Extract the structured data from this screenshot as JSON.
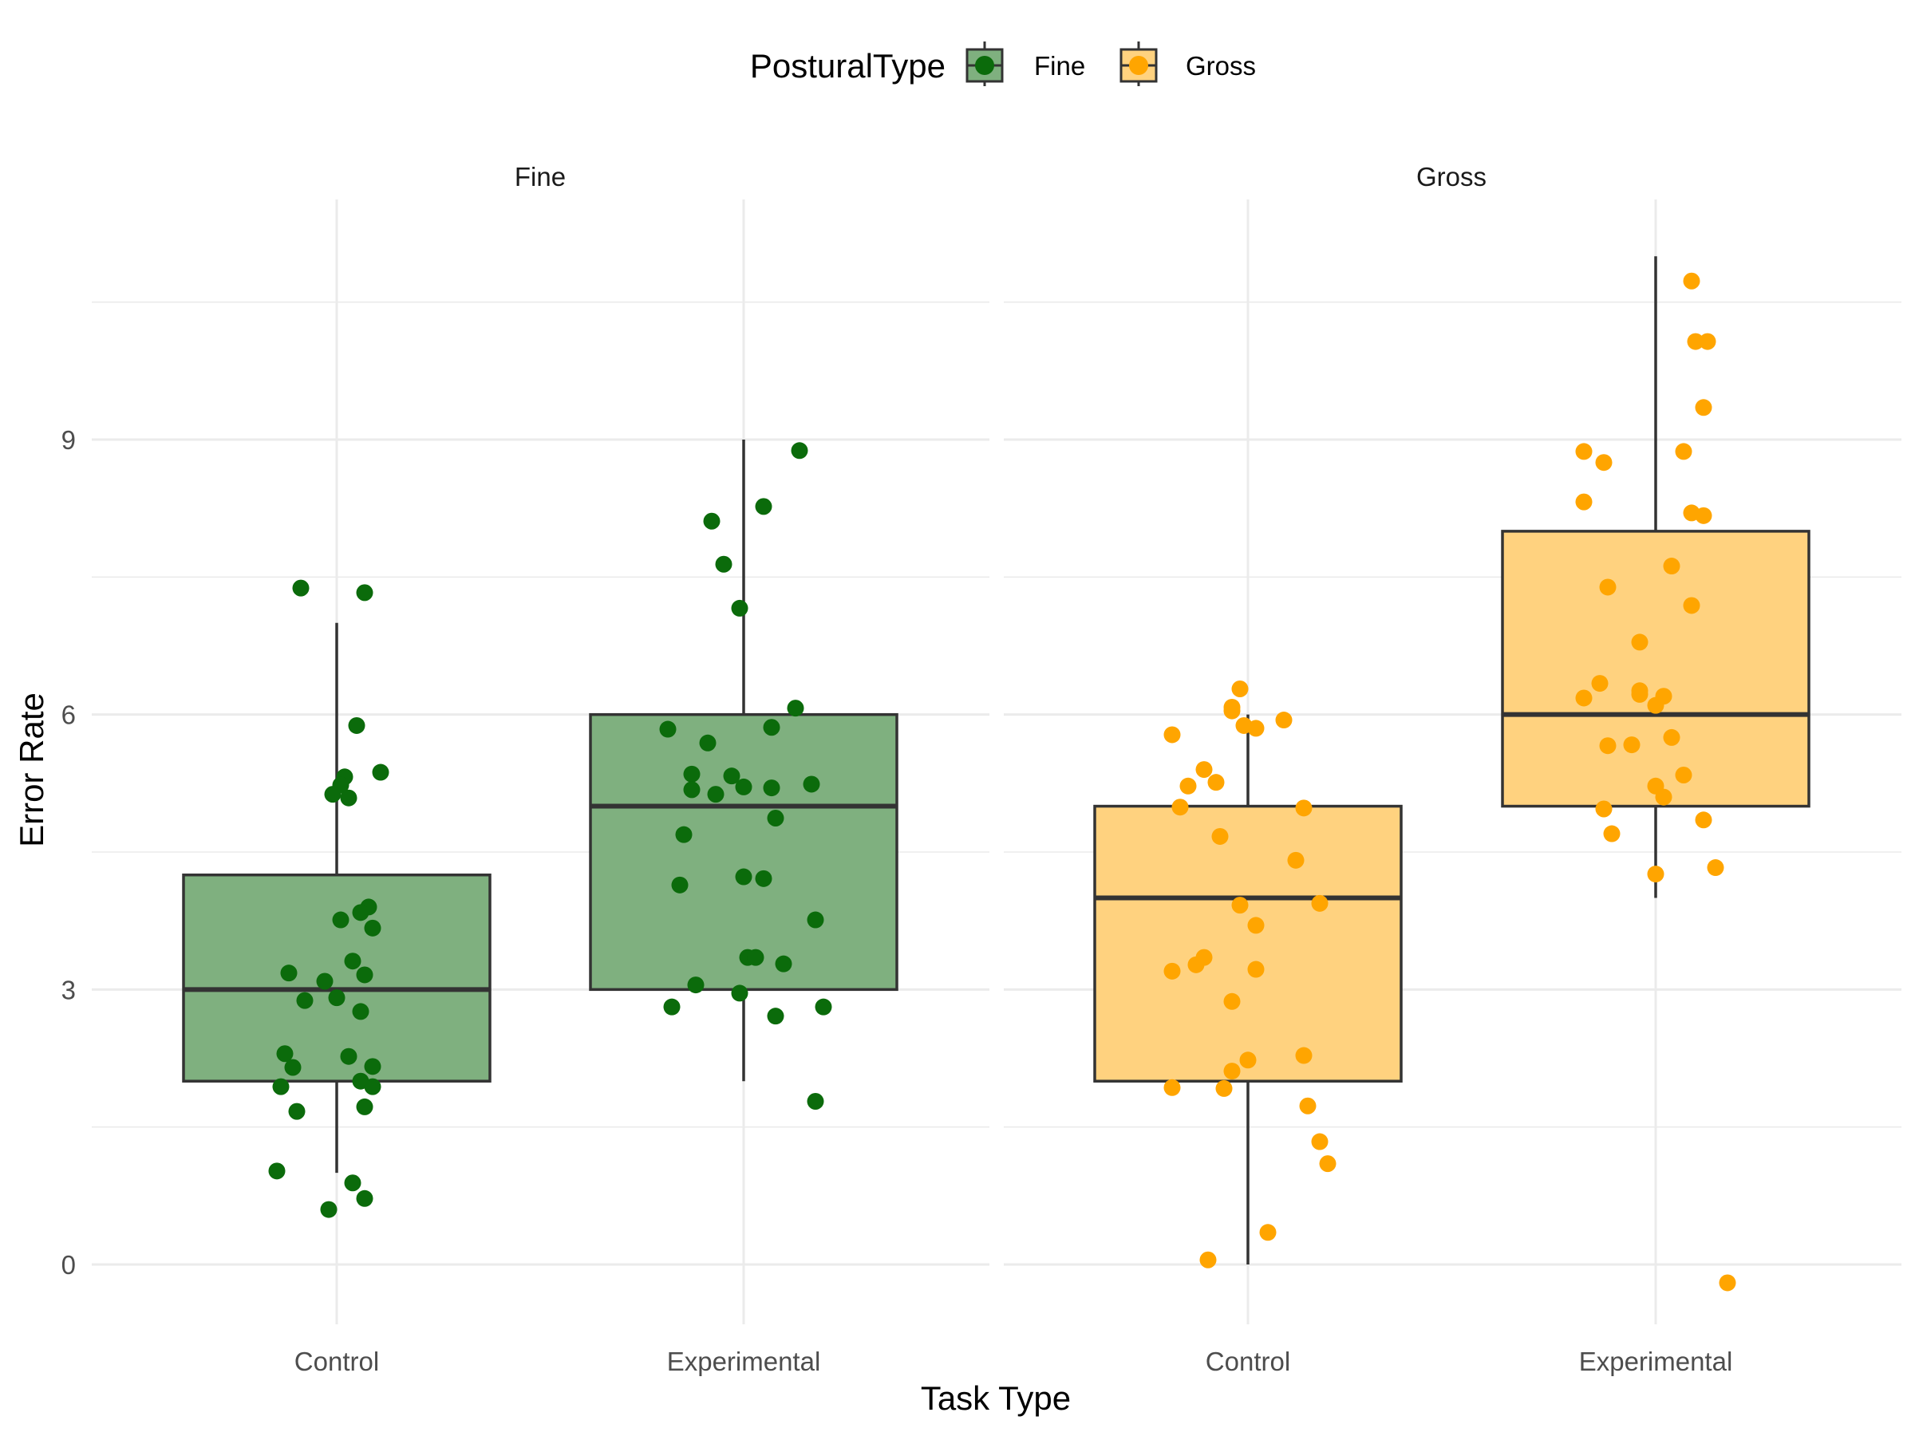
{
  "chart_data": {
    "type": "boxplot",
    "xlabel": "Task Type",
    "ylabel": "Error Rate",
    "legend": {
      "title": "PosturalType",
      "position": "top",
      "entries": [
        {
          "name": "Fine",
          "fill": "#7fb07f",
          "point": "#0b6b0b"
        },
        {
          "name": "Gross",
          "fill": "#ffd27f",
          "point": "#ffa500"
        }
      ]
    },
    "ylim": [
      -0.6,
      11.7
    ],
    "yticks": [
      0,
      3,
      6,
      9
    ],
    "grid": true,
    "categories": [
      "Control",
      "Experimental"
    ],
    "panels": [
      {
        "label": "Fine",
        "boxes": [
          {
            "category": "Control",
            "whisker_low": 1,
            "q1": 2,
            "median": 3,
            "q3": 4.25,
            "whisker_high": 7,
            "points": [
              {
                "dx": -0.09,
                "y": 7.38
              },
              {
                "dx": 0.07,
                "y": 7.33
              },
              {
                "dx": 0.05,
                "y": 5.88
              },
              {
                "dx": 0.11,
                "y": 5.37
              },
              {
                "dx": 0.02,
                "y": 5.32
              },
              {
                "dx": 0.01,
                "y": 5.23
              },
              {
                "dx": -0.01,
                "y": 5.13
              },
              {
                "dx": 0.03,
                "y": 5.09
              },
              {
                "dx": 0.08,
                "y": 3.9
              },
              {
                "dx": 0.06,
                "y": 3.84
              },
              {
                "dx": 0.01,
                "y": 3.76
              },
              {
                "dx": 0.09,
                "y": 3.67
              },
              {
                "dx": 0.04,
                "y": 3.31
              },
              {
                "dx": -0.12,
                "y": 3.18
              },
              {
                "dx": 0.07,
                "y": 3.16
              },
              {
                "dx": -0.03,
                "y": 3.09
              },
              {
                "dx": -0.08,
                "y": 2.88
              },
              {
                "dx": 0.0,
                "y": 2.91
              },
              {
                "dx": 0.06,
                "y": 2.76
              },
              {
                "dx": -0.13,
                "y": 2.3
              },
              {
                "dx": 0.03,
                "y": 2.27
              },
              {
                "dx": -0.11,
                "y": 2.15
              },
              {
                "dx": 0.09,
                "y": 2.16
              },
              {
                "dx": 0.06,
                "y": 2.0
              },
              {
                "dx": -0.14,
                "y": 1.94
              },
              {
                "dx": 0.09,
                "y": 1.94
              },
              {
                "dx": 0.07,
                "y": 1.72
              },
              {
                "dx": -0.1,
                "y": 1.67
              },
              {
                "dx": -0.15,
                "y": 1.02
              },
              {
                "dx": 0.04,
                "y": 0.89
              },
              {
                "dx": 0.07,
                "y": 0.72
              },
              {
                "dx": -0.02,
                "y": 0.6
              }
            ]
          },
          {
            "category": "Experimental",
            "whisker_low": 2,
            "q1": 3,
            "median": 5,
            "q3": 6,
            "whisker_high": 9,
            "points": [
              {
                "dx": 0.14,
                "y": 8.88
              },
              {
                "dx": 0.05,
                "y": 8.27
              },
              {
                "dx": -0.08,
                "y": 8.11
              },
              {
                "dx": -0.05,
                "y": 7.64
              },
              {
                "dx": -0.01,
                "y": 7.16
              },
              {
                "dx": 0.13,
                "y": 6.07
              },
              {
                "dx": -0.19,
                "y": 5.84
              },
              {
                "dx": 0.07,
                "y": 5.86
              },
              {
                "dx": -0.09,
                "y": 5.69
              },
              {
                "dx": -0.13,
                "y": 5.35
              },
              {
                "dx": -0.03,
                "y": 5.33
              },
              {
                "dx": -0.13,
                "y": 5.18
              },
              {
                "dx": 0.0,
                "y": 5.21
              },
              {
                "dx": 0.07,
                "y": 5.2
              },
              {
                "dx": 0.17,
                "y": 5.24
              },
              {
                "dx": -0.07,
                "y": 5.13
              },
              {
                "dx": 0.08,
                "y": 4.87
              },
              {
                "dx": -0.15,
                "y": 4.69
              },
              {
                "dx": 0.0,
                "y": 4.23
              },
              {
                "dx": 0.05,
                "y": 4.21
              },
              {
                "dx": -0.16,
                "y": 4.14
              },
              {
                "dx": 0.18,
                "y": 3.76
              },
              {
                "dx": 0.01,
                "y": 3.35
              },
              {
                "dx": 0.03,
                "y": 3.35
              },
              {
                "dx": 0.1,
                "y": 3.28
              },
              {
                "dx": -0.12,
                "y": 3.05
              },
              {
                "dx": -0.01,
                "y": 2.96
              },
              {
                "dx": -0.18,
                "y": 2.81
              },
              {
                "dx": 0.2,
                "y": 2.81
              },
              {
                "dx": 0.08,
                "y": 2.71
              },
              {
                "dx": 0.18,
                "y": 1.78
              }
            ]
          }
        ]
      },
      {
        "label": "Gross",
        "boxes": [
          {
            "category": "Control",
            "whisker_low": 0,
            "q1": 2,
            "median": 4,
            "q3": 5,
            "whisker_high": 6,
            "points": [
              {
                "dx": -0.02,
                "y": 6.28
              },
              {
                "dx": -0.04,
                "y": 6.08
              },
              {
                "dx": -0.04,
                "y": 6.04
              },
              {
                "dx": 0.09,
                "y": 5.94
              },
              {
                "dx": -0.01,
                "y": 5.88
              },
              {
                "dx": 0.02,
                "y": 5.85
              },
              {
                "dx": -0.19,
                "y": 5.78
              },
              {
                "dx": -0.11,
                "y": 5.4
              },
              {
                "dx": -0.08,
                "y": 5.26
              },
              {
                "dx": -0.15,
                "y": 5.22
              },
              {
                "dx": -0.17,
                "y": 4.99
              },
              {
                "dx": 0.14,
                "y": 4.98
              },
              {
                "dx": -0.07,
                "y": 4.67
              },
              {
                "dx": 0.12,
                "y": 4.41
              },
              {
                "dx": 0.18,
                "y": 3.94
              },
              {
                "dx": -0.02,
                "y": 3.92
              },
              {
                "dx": 0.02,
                "y": 3.7
              },
              {
                "dx": -0.11,
                "y": 3.35
              },
              {
                "dx": -0.13,
                "y": 3.27
              },
              {
                "dx": -0.19,
                "y": 3.2
              },
              {
                "dx": 0.02,
                "y": 3.22
              },
              {
                "dx": -0.04,
                "y": 2.87
              },
              {
                "dx": 0.14,
                "y": 2.28
              },
              {
                "dx": 0.0,
                "y": 2.23
              },
              {
                "dx": -0.04,
                "y": 2.11
              },
              {
                "dx": -0.19,
                "y": 1.93
              },
              {
                "dx": -0.06,
                "y": 1.92
              },
              {
                "dx": 0.15,
                "y": 1.73
              },
              {
                "dx": 0.18,
                "y": 1.34
              },
              {
                "dx": 0.2,
                "y": 1.1
              },
              {
                "dx": 0.05,
                "y": 0.35
              },
              {
                "dx": -0.1,
                "y": 0.05
              }
            ]
          },
          {
            "category": "Experimental",
            "whisker_low": 4,
            "q1": 5,
            "median": 6,
            "q3": 8,
            "whisker_high": 11,
            "points": [
              {
                "dx": 0.09,
                "y": 10.73
              },
              {
                "dx": 0.1,
                "y": 10.07
              },
              {
                "dx": 0.13,
                "y": 10.07
              },
              {
                "dx": 0.12,
                "y": 9.35
              },
              {
                "dx": -0.18,
                "y": 8.87
              },
              {
                "dx": 0.07,
                "y": 8.87
              },
              {
                "dx": -0.13,
                "y": 8.75
              },
              {
                "dx": -0.18,
                "y": 8.32
              },
              {
                "dx": 0.09,
                "y": 8.2
              },
              {
                "dx": 0.12,
                "y": 8.17
              },
              {
                "dx": 0.04,
                "y": 7.62
              },
              {
                "dx": -0.12,
                "y": 7.39
              },
              {
                "dx": 0.09,
                "y": 7.19
              },
              {
                "dx": -0.04,
                "y": 6.79
              },
              {
                "dx": -0.14,
                "y": 6.34
              },
              {
                "dx": -0.04,
                "y": 6.26
              },
              {
                "dx": -0.04,
                "y": 6.22
              },
              {
                "dx": 0.02,
                "y": 6.2
              },
              {
                "dx": -0.18,
                "y": 6.18
              },
              {
                "dx": 0.0,
                "y": 6.1
              },
              {
                "dx": 0.04,
                "y": 5.75
              },
              {
                "dx": -0.12,
                "y": 5.66
              },
              {
                "dx": -0.06,
                "y": 5.67
              },
              {
                "dx": 0.07,
                "y": 5.34
              },
              {
                "dx": 0.0,
                "y": 5.22
              },
              {
                "dx": 0.02,
                "y": 5.1
              },
              {
                "dx": -0.13,
                "y": 4.97
              },
              {
                "dx": 0.12,
                "y": 4.85
              },
              {
                "dx": -0.11,
                "y": 4.7
              },
              {
                "dx": 0.15,
                "y": 4.33
              },
              {
                "dx": 0.0,
                "y": 4.26
              },
              {
                "dx": 0.18,
                "y": -0.2
              }
            ]
          }
        ]
      }
    ]
  }
}
